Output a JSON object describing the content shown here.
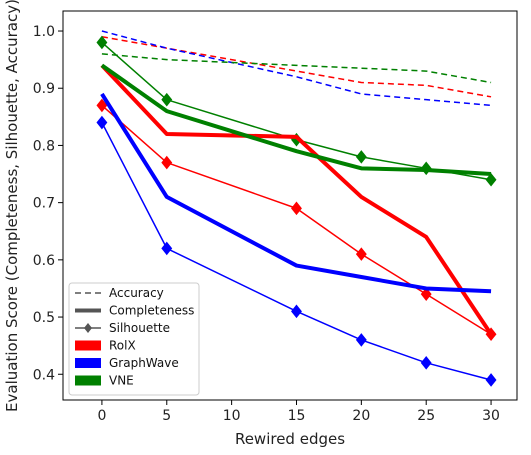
{
  "chart_data": {
    "type": "line",
    "xlabel": "Rewired edges",
    "ylabel": "Evaluation Score (Completeness, Silhouette, Accuracy)",
    "xlim": [
      -3,
      32
    ],
    "ylim": [
      0.355,
      1.035
    ],
    "xticks": [
      0,
      5,
      10,
      15,
      20,
      25,
      30
    ],
    "yticks": [
      0.4,
      0.5,
      0.6,
      0.7,
      0.8,
      0.9,
      1.0
    ],
    "ytick_labels": [
      "0.4",
      "0.5",
      "0.6",
      "0.7",
      "0.8",
      "0.9",
      "1.0"
    ],
    "x": [
      0,
      5,
      15,
      20,
      25,
      30
    ],
    "legend": {
      "placement": "lower-left",
      "metrics": [
        {
          "label": "Accuracy",
          "style": "dashed"
        },
        {
          "label": "Completeness",
          "style": "thick"
        },
        {
          "label": "Silhouette",
          "style": "marker"
        }
      ],
      "methods": [
        {
          "label": "RolX",
          "color": "#ff0000"
        },
        {
          "label": "GraphWave",
          "color": "#0000ff"
        },
        {
          "label": "VNE",
          "color": "#008000"
        }
      ]
    },
    "series": [
      {
        "method": "RolX",
        "metric": "Accuracy",
        "color": "#ff0000",
        "values": [
          0.99,
          0.97,
          0.93,
          0.91,
          0.905,
          0.885
        ]
      },
      {
        "method": "GraphWave",
        "metric": "Accuracy",
        "color": "#0000ff",
        "values": [
          1.0,
          0.97,
          0.92,
          0.89,
          0.88,
          0.87
        ]
      },
      {
        "method": "VNE",
        "metric": "Accuracy",
        "color": "#008000",
        "values": [
          0.96,
          0.95,
          0.94,
          0.935,
          0.93,
          0.91
        ]
      },
      {
        "method": "RolX",
        "metric": "Completeness",
        "color": "#ff0000",
        "values": [
          0.94,
          0.82,
          0.815,
          0.71,
          0.64,
          0.47
        ]
      },
      {
        "method": "GraphWave",
        "metric": "Completeness",
        "color": "#0000ff",
        "values": [
          0.89,
          0.71,
          0.59,
          0.57,
          0.55,
          0.545
        ]
      },
      {
        "method": "VNE",
        "metric": "Completeness",
        "color": "#008000",
        "values": [
          0.94,
          0.86,
          0.79,
          0.76,
          0.757,
          0.75
        ]
      },
      {
        "method": "RolX",
        "metric": "Silhouette",
        "color": "#ff0000",
        "values": [
          0.87,
          0.77,
          0.69,
          0.61,
          0.54,
          0.47
        ]
      },
      {
        "method": "GraphWave",
        "metric": "Silhouette",
        "color": "#0000ff",
        "values": [
          0.84,
          0.62,
          0.51,
          0.46,
          0.42,
          0.39
        ]
      },
      {
        "method": "VNE",
        "metric": "Silhouette",
        "color": "#008000",
        "values": [
          0.98,
          0.88,
          0.81,
          0.78,
          0.76,
          0.74
        ]
      }
    ]
  }
}
